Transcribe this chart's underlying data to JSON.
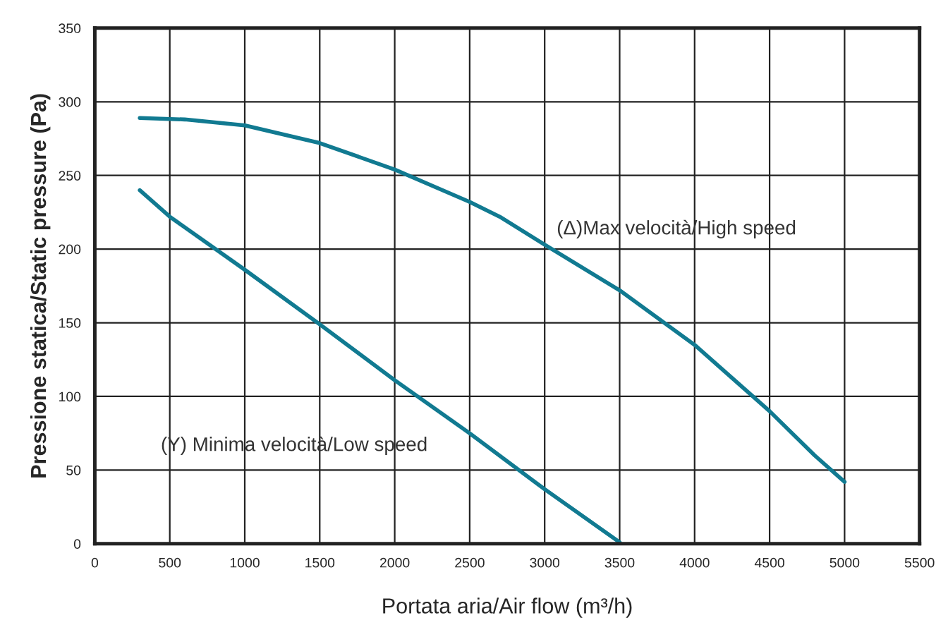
{
  "chart_data": {
    "type": "line",
    "xlabel": "Portata aria/Air flow (m³/h)",
    "ylabel": "Pressione statica/Static pressure (Pa)",
    "series": [
      {
        "name": "(Δ)Max velocità/High speed",
        "color": "#117a91",
        "x": [
          300,
          600,
          1000,
          1500,
          2000,
          2500,
          2700,
          3000,
          3500,
          4000,
          4500,
          4800,
          5000
        ],
        "values": [
          289,
          288,
          284,
          272,
          254,
          232,
          222,
          203,
          172,
          135,
          90,
          60,
          42
        ]
      },
      {
        "name": "(Y) Minima velocità/Low speed",
        "color": "#117a91",
        "x": [
          300,
          500,
          1000,
          1500,
          2000,
          2500,
          3000,
          3500
        ],
        "values": [
          240,
          222,
          186,
          149,
          111,
          75,
          37,
          1
        ]
      }
    ],
    "xlim": [
      0,
      5500
    ],
    "xticks": [
      0,
      500,
      1000,
      1500,
      2000,
      2500,
      3000,
      3500,
      4000,
      4500,
      5000,
      5500
    ],
    "ylim": [
      0,
      350
    ],
    "yticks": [
      0,
      50,
      100,
      150,
      200,
      250,
      300,
      350
    ],
    "grid": true,
    "marker": "none",
    "line_style": "solid",
    "legend": false
  }
}
